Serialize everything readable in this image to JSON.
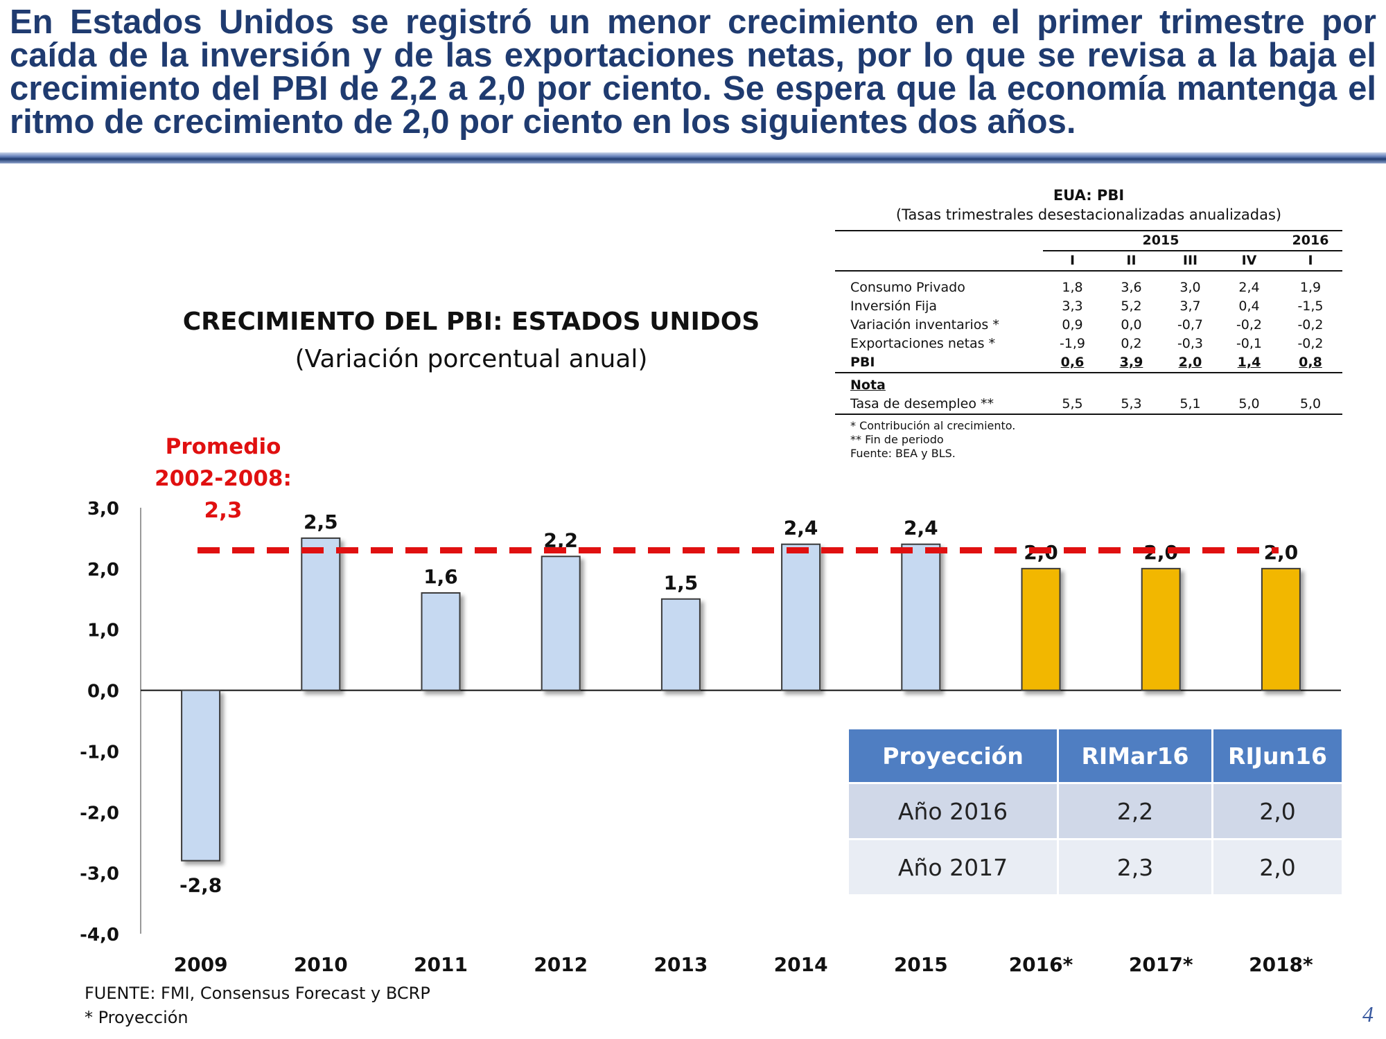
{
  "headline": "En Estados Unidos se registró un menor crecimiento en el primer trimestre por caída de la inversión y de las exportaciones netas, por lo que se revisa a la baja el crecimiento del PBI de 2,2 a 2,0 por ciento. Se espera que la economía mantenga el ritmo de crecimiento de 2,0 por ciento en los siguientes dos años.",
  "colors": {
    "headline": "#1f3b70",
    "bar_historical": "#c6d9f1",
    "bar_projection": "#f2b705",
    "average_line": "#e01010",
    "table_header": "#4f7ec2"
  },
  "chart_data": {
    "type": "bar",
    "title": "CRECIMIENTO DEL PBI: ESTADOS UNIDOS",
    "subtitle": "(Variación porcentual anual)",
    "categories": [
      "2009",
      "2010",
      "2011",
      "2012",
      "2013",
      "2014",
      "2015",
      "2016*",
      "2017*",
      "2018*"
    ],
    "values": [
      -2.8,
      2.5,
      1.6,
      2.2,
      1.5,
      2.4,
      2.4,
      2.0,
      2.0,
      2.0
    ],
    "value_labels": [
      "-2,8",
      "2,5",
      "1,6",
      "2,2",
      "1,5",
      "2,4",
      "2,4",
      "2,0",
      "2,0",
      "2,0"
    ],
    "projection": [
      false,
      false,
      false,
      false,
      false,
      false,
      false,
      true,
      true,
      true
    ],
    "ylim": [
      -4.0,
      3.0
    ],
    "yticks": [
      3.0,
      2.0,
      1.0,
      0.0,
      -1.0,
      -2.0,
      -3.0,
      -4.0
    ],
    "ytick_labels": [
      "3,0",
      "2,0",
      "1,0",
      "0,0",
      "-1,0",
      "-2,0",
      "-3,0",
      "-4,0"
    ],
    "average": {
      "value": 2.3,
      "label_line1": "Promedio",
      "label_line2": "2002-2008:",
      "label_line3": "2,3"
    },
    "grid": false,
    "xlabel": "",
    "ylabel": ""
  },
  "quarterly_table": {
    "title": "EUA: PBI",
    "subtitle": "(Tasas trimestrales desestacionalizadas anualizadas)",
    "year_a": "2015",
    "year_b": "2016",
    "quarters": [
      "I",
      "II",
      "III",
      "IV",
      "I"
    ],
    "rows": [
      {
        "label": "Consumo Privado",
        "values": [
          "1,8",
          "3,6",
          "3,0",
          "2,4",
          "1,9"
        ]
      },
      {
        "label": "Inversión Fija",
        "values": [
          "3,3",
          "5,2",
          "3,7",
          "0,4",
          "-1,5"
        ]
      },
      {
        "label": "Variación inventarios *",
        "values": [
          "0,9",
          "0,0",
          "-0,7",
          "-0,2",
          "-0,2"
        ]
      },
      {
        "label": "Exportaciones netas *",
        "values": [
          "-1,9",
          "0,2",
          "-0,3",
          "-0,1",
          "-0,2"
        ]
      }
    ],
    "pbi_row": {
      "label": "PBI",
      "values": [
        "0,6",
        "3,9",
        "2,0",
        "1,4",
        "0,8"
      ]
    },
    "note_label": "Nota",
    "unemployment_row": {
      "label": "Tasa de desempleo **",
      "values": [
        "5,5",
        "5,3",
        "5,1",
        "5,0",
        "5,0"
      ]
    },
    "footnotes": [
      "* Contribución al crecimiento.",
      "** Fin de periodo",
      "Fuente: BEA y BLS."
    ]
  },
  "projection_table": {
    "headers": [
      "Proyección",
      "RIMar16",
      "RIJun16"
    ],
    "rows": [
      [
        "Año 2016",
        "2,2",
        "2,0"
      ],
      [
        "Año 2017",
        "2,3",
        "2,0"
      ]
    ]
  },
  "source_line": "FUENTE: FMI, Consensus Forecast y BCRP",
  "note_line": "* Proyección",
  "page_number": "4"
}
